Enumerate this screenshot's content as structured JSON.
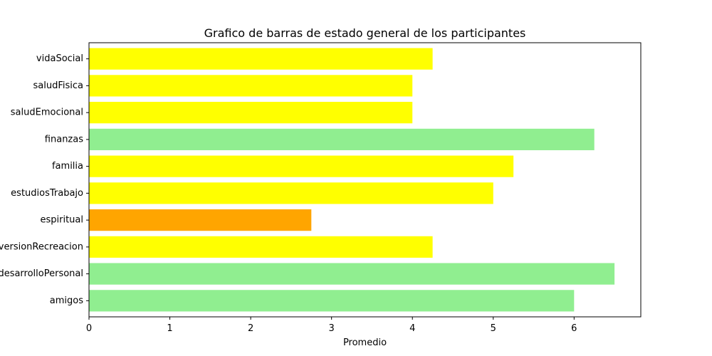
{
  "chart_data": {
    "type": "bar",
    "orientation": "horizontal",
    "title": "Grafico de barras de estado general de los participantes",
    "xlabel": "Promedio",
    "ylabel": "",
    "categories": [
      "amigos",
      "desarrolloPersonal",
      "diversionRecreacion",
      "espiritual",
      "estudiosTrabajo",
      "familia",
      "finanzas",
      "saludEmocional",
      "saludFisica",
      "vidaSocial"
    ],
    "values": [
      6.0,
      6.5,
      4.25,
      2.75,
      5.0,
      5.25,
      6.25,
      4.0,
      4.0,
      4.25
    ],
    "colors": [
      "#90ee90",
      "#90ee90",
      "#ffff00",
      "#ffa500",
      "#ffff00",
      "#ffff00",
      "#90ee90",
      "#ffff00",
      "#ffff00",
      "#ffff00"
    ],
    "xlim": [
      0,
      6.825
    ],
    "xticks": [
      0,
      1,
      2,
      3,
      4,
      5,
      6
    ],
    "grid": false,
    "legend": "none"
  }
}
